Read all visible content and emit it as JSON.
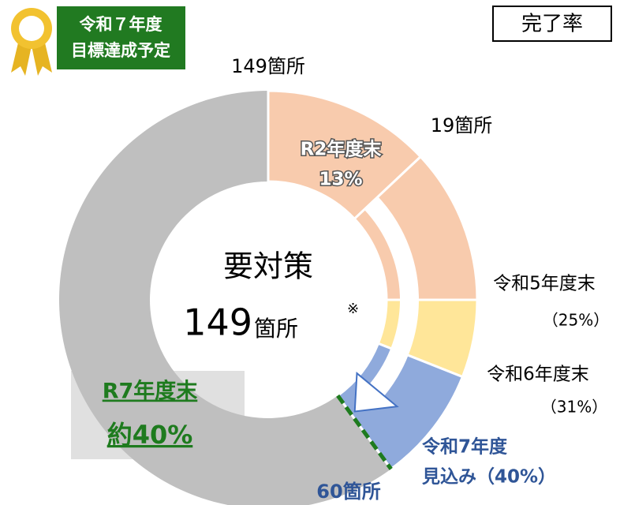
{
  "badge": {
    "lines": [
      "令和７年度",
      "目標達成予定"
    ]
  },
  "legend_box": "完了率",
  "chart_data": {
    "type": "donut",
    "max": 100,
    "center_title": "要対策",
    "center_value": 149,
    "center_unit": "箇所",
    "center_note": "※",
    "categories": [
      "R2年度末",
      "令和5年度末",
      "令和6年度末",
      "令和7年度"
    ],
    "values": [
      13,
      25,
      31,
      40
    ],
    "value_labels": [
      "13%",
      "（25%）",
      "（31%）",
      "見込み（40%）"
    ],
    "colors": [
      "#f8cbad",
      "#f8cbad",
      "#ffe699",
      "#8faadc"
    ],
    "rest_color": "#bfbfbf",
    "target": {
      "name": "R7年度末",
      "value": 40,
      "label": "約40%",
      "color": "#1e7b1e"
    },
    "annotations": [
      "149箇所",
      "19箇所",
      "60箇所"
    ]
  }
}
